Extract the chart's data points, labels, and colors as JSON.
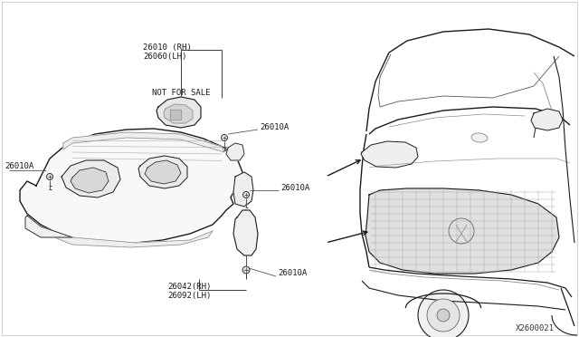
{
  "background_color": "#ffffff",
  "diagram_id": "X2600021",
  "labels": {
    "main_assembly_top": [
      "26010 (RH)",
      "26060(LH)"
    ],
    "not_for_sale": "NOT FOR SALE",
    "bolt_top_right": "26010A",
    "bolt_left": "26010A",
    "bolt_mid_right": "26010A",
    "bolt_bottom": "26010A",
    "bottom_assembly": [
      "26042(RH)",
      "26092(LH)"
    ]
  },
  "colors": {
    "lines": "#1a1a1a",
    "fill_white": "#ffffff",
    "fill_light": "#f5f5f5",
    "fill_medium": "#e8e8e8",
    "fill_dark": "#d0d0d0",
    "leader": "#444444"
  },
  "figsize": [
    6.4,
    3.72
  ],
  "dpi": 100
}
